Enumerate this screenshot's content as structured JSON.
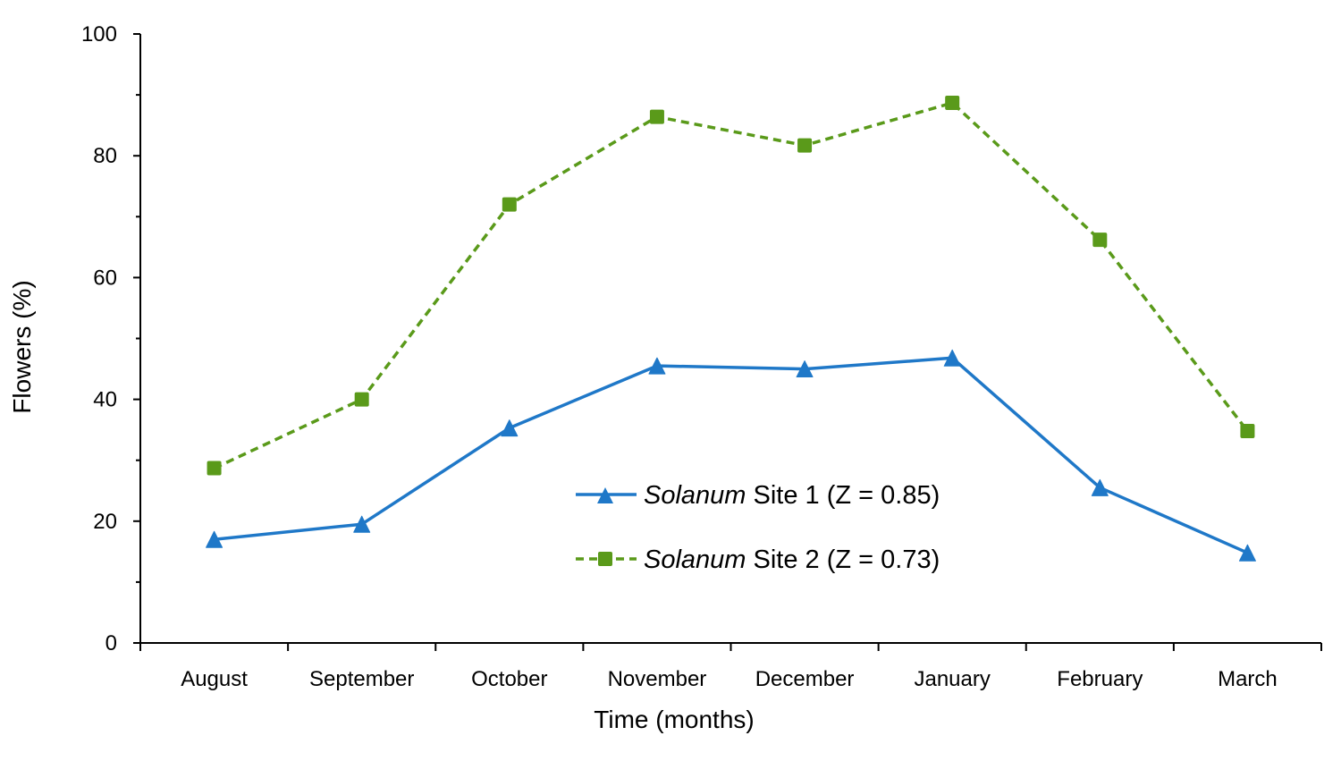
{
  "chart_data": {
    "type": "line",
    "title": "",
    "xlabel": "Time (months)",
    "ylabel": "Flowers (%)",
    "categories": [
      "August",
      "September",
      "October",
      "November",
      "December",
      "January",
      "February",
      "March"
    ],
    "ylim": [
      0,
      100
    ],
    "yticks": [
      0,
      20,
      40,
      60,
      80,
      100
    ],
    "ytick_labels": [
      "0",
      "20",
      "40",
      "60",
      "80",
      "100"
    ],
    "grid": false,
    "legend_position": "center",
    "series": [
      {
        "name": "Solanum Site 1 (Z = 0.85)",
        "legend_species": "Solanum",
        "legend_rest": " Site 1 (Z = 0.85)",
        "color": "#1f78c8",
        "line_style": "solid",
        "marker": "triangle",
        "values": [
          17,
          19.5,
          35.3,
          45.5,
          45.0,
          46.8,
          25.5,
          14.8
        ]
      },
      {
        "name": "Solanum Site 2 (Z = 0.73)",
        "legend_species": "Solanum",
        "legend_rest": " Site 2 (Z = 0.73)",
        "color": "#5a9a1a",
        "line_style": "dashed",
        "marker": "square",
        "values": [
          28.7,
          40.0,
          72.0,
          86.4,
          81.7,
          88.7,
          66.2,
          34.8
        ]
      }
    ]
  }
}
